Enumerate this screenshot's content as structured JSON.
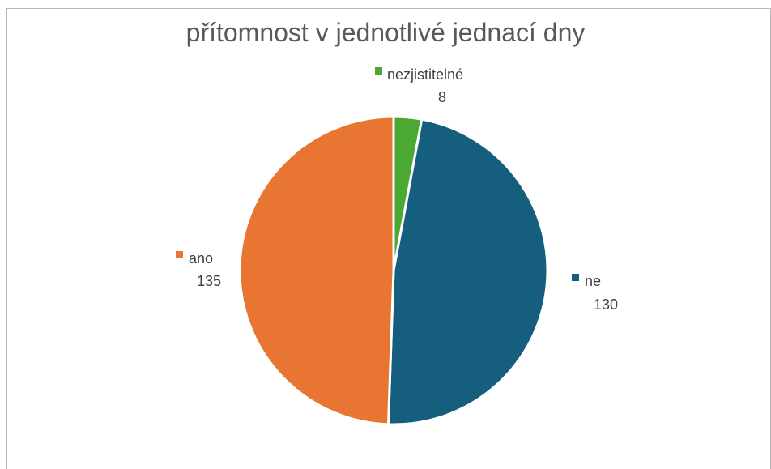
{
  "chart_data": {
    "type": "pie",
    "title": "přítomnost v jednotlivé jednací dny",
    "categories": [
      "nezjistitelné",
      "ne",
      "ano"
    ],
    "values": [
      8,
      130,
      135
    ],
    "colors": [
      "#4aa833",
      "#165e7e",
      "#e87532"
    ],
    "start_angle_deg": 0,
    "direction": "clockwise",
    "data_labels": "category name and value, with legend key marker",
    "legend": "none"
  }
}
